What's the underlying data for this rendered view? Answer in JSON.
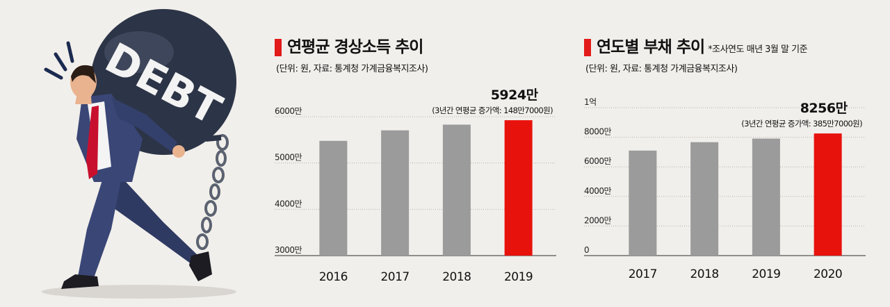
{
  "illustration": {
    "ball_text": "DEBT"
  },
  "chart_data": [
    {
      "type": "bar",
      "title": "연평균 경상소득 추이",
      "source": "(단위: 원, 자료: 통계청 가계금융복지조사)",
      "categories": [
        "2016",
        "2017",
        "2018",
        "2019"
      ],
      "values": [
        5478,
        5705,
        5828,
        5924
      ],
      "tick_values": [
        3000,
        4000,
        5000,
        6000
      ],
      "tick_labels": [
        "3000만",
        "4000만",
        "5000만",
        "6000만"
      ],
      "ylim": [
        3000,
        6000
      ],
      "highlight_index": 3,
      "highlight_label": "5924만",
      "highlight_note": "(3년간 연평균 증가액: 148만7000원)",
      "grid": true,
      "colors": {
        "bar": "#9b9b9b",
        "highlight": "#e8120c"
      }
    },
    {
      "type": "bar",
      "title": "연도별 부채 추이",
      "title_note": "*조사연도 매년 3월 말 기준",
      "source": "(단위: 원, 자료: 통계청 가계금융복지조사)",
      "categories": [
        "2017",
        "2018",
        "2019",
        "2020"
      ],
      "values": [
        7099,
        7668,
        7910,
        8256
      ],
      "tick_values": [
        0,
        2000,
        4000,
        6000,
        8000,
        10000
      ],
      "tick_labels": [
        "0",
        "2000만",
        "4000만",
        "6000만",
        "8000만",
        "1억"
      ],
      "ylim": [
        0,
        10000
      ],
      "highlight_index": 3,
      "highlight_label": "8256만",
      "highlight_note": "(3년간 연평균 증가액: 385만7000원)",
      "grid": true,
      "colors": {
        "bar": "#9b9b9b",
        "highlight": "#e8120c"
      }
    }
  ]
}
